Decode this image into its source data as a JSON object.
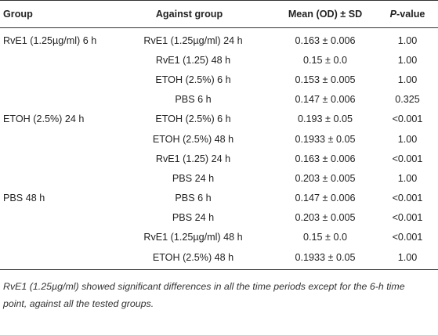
{
  "table": {
    "headers": {
      "group": "Group",
      "against": "Against group",
      "mean": "Mean (OD) ± SD",
      "p_italic": "P",
      "p_rest": "-value"
    },
    "rows": [
      {
        "group": "RvE1 (1.25µg/ml) 6 h",
        "against": "RvE1 (1.25µg/ml) 24 h",
        "mean": "0.163 ± 0.006",
        "p": "1.00"
      },
      {
        "group": "",
        "against": "RvE1 (1.25) 48 h",
        "mean": "0.15 ± 0.0",
        "p": "1.00"
      },
      {
        "group": "",
        "against": "ETOH (2.5%) 6 h",
        "mean": "0.153 ± 0.005",
        "p": "1.00"
      },
      {
        "group": "",
        "against": "PBS 6 h",
        "mean": "0.147 ± 0.006",
        "p": "0.325"
      },
      {
        "group": "ETOH (2.5%) 24 h",
        "against": "ETOH (2.5%) 6 h",
        "mean": "0.193 ± 0.05",
        "p": "<0.001"
      },
      {
        "group": "",
        "against": "ETOH (2.5%) 48 h",
        "mean": "0.1933 ± 0.05",
        "p": "1.00"
      },
      {
        "group": "",
        "against": "RvE1 (1.25) 24 h",
        "mean": "0.163 ± 0.006",
        "p": "<0.001"
      },
      {
        "group": "",
        "against": "PBS 24 h",
        "mean": "0.203 ± 0.005",
        "p": "1.00"
      },
      {
        "group": "PBS 48 h",
        "against": "PBS 6 h",
        "mean": "0.147 ± 0.006",
        "p": "<0.001"
      },
      {
        "group": "",
        "against": "PBS 24 h",
        "mean": "0.203 ± 0.005",
        "p": "<0.001"
      },
      {
        "group": "",
        "against": "RvE1 (1.25µg/ml) 48 h",
        "mean": "0.15 ± 0.0",
        "p": "<0.001"
      },
      {
        "group": "",
        "against": "ETOH (2.5%) 48 h",
        "mean": "0.1933 ± 0.05",
        "p": "1.00"
      }
    ]
  },
  "footnote": "RvE1 (1.25µg/ml) showed significant differences in all the time periods except for the 6-h time point, against all the tested groups."
}
